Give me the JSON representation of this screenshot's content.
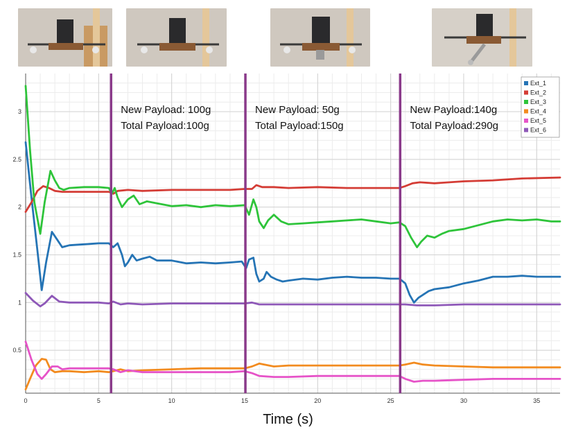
{
  "photos": [
    {
      "label": "drone-photo-1"
    },
    {
      "label": "drone-photo-2"
    },
    {
      "label": "drone-photo-3"
    },
    {
      "label": "drone-photo-4"
    }
  ],
  "chart_data": {
    "type": "line",
    "xlabel": "Time (s)",
    "ylabel": "",
    "xlim": [
      0,
      36.6
    ],
    "ylim": [
      0.05,
      3.4
    ],
    "x_ticks": [
      0,
      5,
      10,
      15,
      20,
      25,
      30,
      35
    ],
    "y_ticks": [
      0.5,
      1,
      1.5,
      2,
      2.5,
      3
    ],
    "grid": true,
    "legend_position": "top-right",
    "series": [
      {
        "name": "Ext_1",
        "color": "#2574b5",
        "x": [
          0,
          0.4,
          0.8,
          1.1,
          1.4,
          1.8,
          2.2,
          2.5,
          3,
          4,
          5,
          5.7,
          6,
          6.3,
          6.6,
          6.8,
          7,
          7.3,
          7.6,
          8,
          8.5,
          9,
          10,
          11,
          12,
          13,
          14,
          14.8,
          15.1,
          15.3,
          15.6,
          15.8,
          16,
          16.3,
          16.5,
          16.8,
          17.2,
          17.6,
          18,
          19,
          20,
          21,
          22,
          23,
          24,
          25,
          25.6,
          26,
          26.3,
          26.6,
          26.9,
          27.2,
          27.6,
          28,
          28.5,
          29,
          30,
          31,
          32,
          33,
          34,
          35,
          36.6
        ],
        "y": [
          2.68,
          2.1,
          1.55,
          1.13,
          1.42,
          1.74,
          1.65,
          1.58,
          1.6,
          1.61,
          1.62,
          1.62,
          1.58,
          1.62,
          1.5,
          1.38,
          1.42,
          1.5,
          1.44,
          1.46,
          1.48,
          1.44,
          1.44,
          1.41,
          1.42,
          1.41,
          1.42,
          1.43,
          1.36,
          1.45,
          1.47,
          1.3,
          1.22,
          1.25,
          1.32,
          1.27,
          1.24,
          1.22,
          1.23,
          1.25,
          1.24,
          1.26,
          1.27,
          1.26,
          1.26,
          1.25,
          1.25,
          1.2,
          1.08,
          1.0,
          1.05,
          1.08,
          1.12,
          1.14,
          1.15,
          1.16,
          1.2,
          1.23,
          1.27,
          1.27,
          1.28,
          1.27,
          1.27
        ]
      },
      {
        "name": "Ext_2",
        "color": "#d43c35",
        "x": [
          0,
          0.4,
          0.8,
          1.2,
          1.6,
          2,
          2.5,
          3,
          4,
          5,
          5.7,
          6,
          6.3,
          7,
          8,
          10,
          12,
          14,
          15,
          15.5,
          15.8,
          16.2,
          17,
          18,
          20,
          22,
          24,
          25.6,
          26,
          26.5,
          27,
          28,
          30,
          32,
          34,
          36.6
        ],
        "y": [
          1.95,
          2.05,
          2.17,
          2.22,
          2.2,
          2.17,
          2.16,
          2.16,
          2.16,
          2.16,
          2.16,
          2.14,
          2.17,
          2.18,
          2.17,
          2.18,
          2.18,
          2.18,
          2.19,
          2.19,
          2.23,
          2.21,
          2.21,
          2.2,
          2.21,
          2.2,
          2.2,
          2.2,
          2.22,
          2.25,
          2.26,
          2.25,
          2.27,
          2.28,
          2.3,
          2.31
        ]
      },
      {
        "name": "Ext_3",
        "color": "#2ec43a",
        "x": [
          0,
          0.3,
          0.6,
          1,
          1.3,
          1.7,
          2,
          2.3,
          2.6,
          3,
          4,
          5,
          5.7,
          5.9,
          6.1,
          6.3,
          6.6,
          7,
          7.4,
          7.8,
          8.3,
          9,
          10,
          11,
          12,
          13,
          14,
          15,
          15.3,
          15.6,
          15.8,
          16,
          16.3,
          16.6,
          17,
          17.5,
          18,
          19,
          20,
          21,
          22,
          23,
          24,
          25,
          25.6,
          26,
          26.4,
          26.8,
          27.1,
          27.5,
          28,
          28.5,
          29,
          30,
          31,
          32,
          33,
          34,
          35,
          36,
          36.6
        ],
        "y": [
          3.27,
          2.6,
          2.05,
          1.72,
          2.05,
          2.38,
          2.28,
          2.2,
          2.18,
          2.2,
          2.21,
          2.21,
          2.2,
          2.14,
          2.2,
          2.1,
          2.0,
          2.08,
          2.12,
          2.03,
          2.06,
          2.04,
          2.01,
          2.02,
          2.0,
          2.02,
          2.01,
          2.02,
          1.92,
          2.08,
          2.0,
          1.85,
          1.78,
          1.86,
          1.92,
          1.85,
          1.82,
          1.83,
          1.84,
          1.85,
          1.86,
          1.87,
          1.85,
          1.83,
          1.84,
          1.8,
          1.68,
          1.58,
          1.64,
          1.7,
          1.68,
          1.72,
          1.75,
          1.77,
          1.81,
          1.85,
          1.87,
          1.86,
          1.87,
          1.85,
          1.85
        ]
      },
      {
        "name": "Ext_4",
        "color": "#f28b1f",
        "x": [
          0,
          0.3,
          0.7,
          1.1,
          1.4,
          1.7,
          2,
          2.5,
          3,
          4,
          5,
          5.7,
          6,
          6.5,
          7,
          8,
          10,
          12,
          14,
          15,
          15.5,
          16,
          17,
          18,
          20,
          22,
          24,
          25.6,
          26,
          26.6,
          27.2,
          28,
          30,
          32,
          34,
          36.6
        ],
        "y": [
          0.09,
          0.2,
          0.34,
          0.41,
          0.4,
          0.3,
          0.27,
          0.28,
          0.28,
          0.27,
          0.28,
          0.27,
          0.28,
          0.3,
          0.28,
          0.29,
          0.3,
          0.31,
          0.31,
          0.31,
          0.33,
          0.36,
          0.33,
          0.34,
          0.34,
          0.34,
          0.34,
          0.34,
          0.35,
          0.37,
          0.35,
          0.34,
          0.33,
          0.32,
          0.32,
          0.32
        ]
      },
      {
        "name": "Ext_5",
        "color": "#e653c8",
        "x": [
          0,
          0.4,
          0.8,
          1.1,
          1.4,
          1.8,
          2.2,
          2.5,
          3,
          4,
          5,
          5.7,
          6,
          6.5,
          7,
          8,
          10,
          12,
          14,
          15,
          15.5,
          16,
          17,
          18,
          20,
          22,
          24,
          25.6,
          26,
          26.6,
          27.2,
          28,
          30,
          32,
          34,
          36.6
        ],
        "y": [
          0.59,
          0.4,
          0.25,
          0.2,
          0.25,
          0.33,
          0.33,
          0.3,
          0.31,
          0.31,
          0.31,
          0.31,
          0.3,
          0.27,
          0.29,
          0.27,
          0.27,
          0.27,
          0.27,
          0.28,
          0.26,
          0.23,
          0.22,
          0.22,
          0.23,
          0.23,
          0.23,
          0.23,
          0.2,
          0.17,
          0.18,
          0.18,
          0.19,
          0.2,
          0.2,
          0.2
        ]
      },
      {
        "name": "Ext_6",
        "color": "#8e58b8",
        "x": [
          0,
          0.5,
          1,
          1.3,
          1.8,
          2.3,
          3,
          4,
          5,
          5.7,
          6,
          6.5,
          7,
          8,
          10,
          12,
          14,
          15,
          15.5,
          16,
          17,
          18,
          20,
          22,
          24,
          25.6,
          26,
          26.8,
          28,
          30,
          32,
          34,
          36.6
        ],
        "y": [
          1.1,
          1.02,
          0.96,
          0.99,
          1.07,
          1.01,
          1.0,
          1.0,
          1.0,
          0.99,
          1.01,
          0.98,
          0.99,
          0.98,
          0.99,
          0.99,
          0.99,
          0.99,
          1.0,
          0.98,
          0.98,
          0.98,
          0.98,
          0.98,
          0.98,
          0.98,
          0.98,
          0.97,
          0.97,
          0.98,
          0.98,
          0.98,
          0.98
        ]
      }
    ],
    "events": [
      {
        "x": 5.85,
        "line1": "New Payload: 100g",
        "line2": "Total Payload:100g"
      },
      {
        "x": 15.05,
        "line1": "New Payload: 50g",
        "line2": "Total Payload:150g"
      },
      {
        "x": 25.65,
        "line1": "New Payload:140g",
        "line2": "Total Payload:290g"
      }
    ],
    "event_color": "#8a3a8a"
  }
}
